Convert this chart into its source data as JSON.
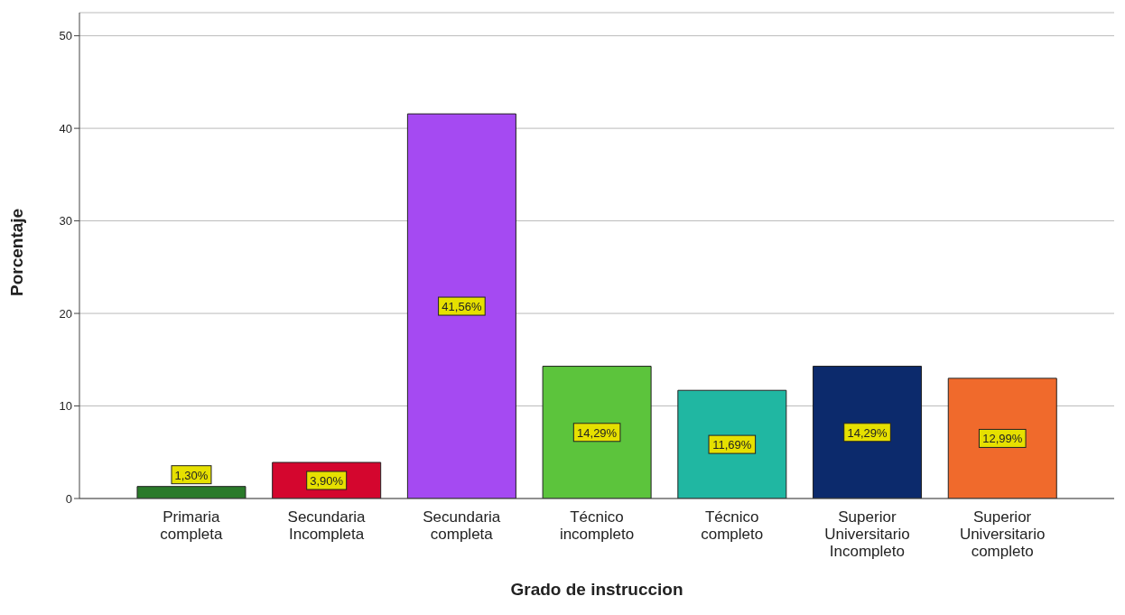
{
  "chart_data": {
    "type": "bar",
    "xlabel": "Grado de instruccion",
    "ylabel": "Porcentaje",
    "categories": [
      "Primaria completa",
      "Secundaria Incompleta",
      "Secundaria completa",
      "Técnico incompleto",
      "Técnico completo",
      "Superior Universitario Incompleto",
      "Superior Universitario completo"
    ],
    "values": [
      1.3,
      3.9,
      41.56,
      14.29,
      11.69,
      14.29,
      12.99
    ],
    "colors": [
      "#2a7a2a",
      "#d4062e",
      "#a54af2",
      "#5cc43c",
      "#20b7a2",
      "#0c2a6c",
      "#f06a2c"
    ],
    "value_labels": [
      "1,30%",
      "3,90%",
      "41,56%",
      "14,29%",
      "11,69%",
      "14,29%",
      "12,99%"
    ],
    "ylim": [
      0,
      52.5
    ],
    "yticks": [
      0,
      10,
      20,
      30,
      40,
      50
    ],
    "grid": "y"
  }
}
